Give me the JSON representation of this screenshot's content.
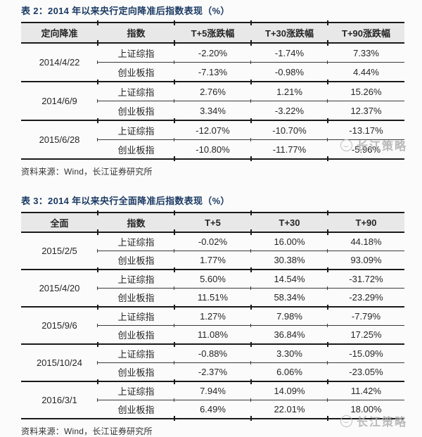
{
  "colors": {
    "title_blue": "#1b3a63",
    "header_bg": "#e8e8e8",
    "border_dark": "#1a1a1a",
    "body_text": "#262626",
    "watermark_gray": "#aeaeae",
    "page_bg": "#fbfbfb"
  },
  "watermark": {
    "text": "长江策略",
    "logo": "changjiang-circle-logo"
  },
  "table2": {
    "title": "表 2：2014 年以来央行定向降准后指数表现（%）",
    "headers": [
      "定向降准",
      "指数",
      "T+5涨跌幅",
      "T+30涨跌幅",
      "T+90涨跌幅"
    ],
    "groups": [
      {
        "date": "2014/4/22",
        "rows": [
          {
            "index": "上证综指",
            "t5": "-2.20%",
            "t30": "-1.74%",
            "t90": "7.33%"
          },
          {
            "index": "创业板指",
            "t5": "-7.13%",
            "t30": "-0.98%",
            "t90": "4.44%"
          }
        ]
      },
      {
        "date": "2014/6/9",
        "rows": [
          {
            "index": "上证综指",
            "t5": "2.76%",
            "t30": "1.21%",
            "t90": "15.26%"
          },
          {
            "index": "创业板指",
            "t5": "3.34%",
            "t30": "-3.22%",
            "t90": "12.37%"
          }
        ]
      },
      {
        "date": "2015/6/28",
        "rows": [
          {
            "index": "上证综指",
            "t5": "-12.07%",
            "t30": "-10.70%",
            "t90": "-13.17%"
          },
          {
            "index": "创业板指",
            "t5": "-10.80%",
            "t30": "-11.77%",
            "t90": "-5.96%"
          }
        ]
      }
    ],
    "source": "资料来源：Wind，长江证券研究所"
  },
  "table3": {
    "title": "表 3：2014 年以来央行全面降准后指数表现（%）",
    "headers": [
      "全面",
      "指数",
      "T+5",
      "T+30",
      "T+90"
    ],
    "groups": [
      {
        "date": "2015/2/5",
        "rows": [
          {
            "index": "上证综指",
            "t5": "-0.02%",
            "t30": "16.00%",
            "t90": "44.18%"
          },
          {
            "index": "创业板指",
            "t5": "1.77%",
            "t30": "30.38%",
            "t90": "93.09%"
          }
        ]
      },
      {
        "date": "2015/4/20",
        "rows": [
          {
            "index": "上证综指",
            "t5": "5.60%",
            "t30": "14.54%",
            "t90": "-31.72%"
          },
          {
            "index": "创业板指",
            "t5": "11.51%",
            "t30": "58.34%",
            "t90": "-23.29%"
          }
        ]
      },
      {
        "date": "2015/9/6",
        "rows": [
          {
            "index": "上证综指",
            "t5": "1.27%",
            "t30": "7.98%",
            "t90": "-7.79%"
          },
          {
            "index": "创业板指",
            "t5": "11.08%",
            "t30": "36.84%",
            "t90": "17.25%"
          }
        ]
      },
      {
        "date": "2015/10/24",
        "rows": [
          {
            "index": "上证综指",
            "t5": "-0.88%",
            "t30": "3.30%",
            "t90": "-15.09%"
          },
          {
            "index": "创业板指",
            "t5": "-2.37%",
            "t30": "6.06%",
            "t90": "-23.05%"
          }
        ]
      },
      {
        "date": "2016/3/1",
        "rows": [
          {
            "index": "上证综指",
            "t5": "7.94%",
            "t30": "14.09%",
            "t90": "11.42%"
          },
          {
            "index": "创业板指",
            "t5": "6.49%",
            "t30": "22.01%",
            "t90": "18.00%"
          }
        ]
      }
    ],
    "source": "资料来源：Wind，长江证券研究所"
  }
}
